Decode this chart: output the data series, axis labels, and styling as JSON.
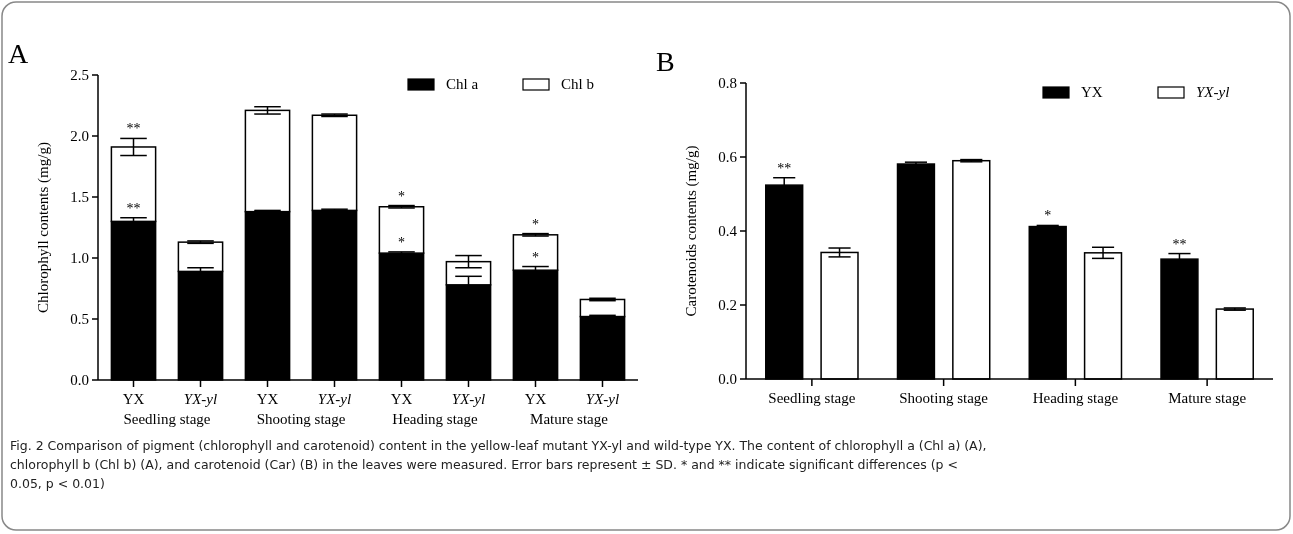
{
  "chart_data": [
    {
      "type": "bar",
      "title": "A",
      "ylabel": "Chlorophyll contents (mg/g)",
      "stacked": true,
      "legend": "top right",
      "categories": [
        "YX",
        "YX-yl",
        "YX",
        "YX-yl",
        "YX",
        "YX-yl",
        "YX",
        "YX-yl"
      ],
      "series": [
        {
          "name": "Chl a",
          "color": "#000000",
          "values": [
            1.3,
            0.89,
            1.38,
            1.39,
            1.04,
            0.78,
            0.9,
            0.52
          ],
          "errors": [
            0.03,
            0.03,
            0.01,
            0.01,
            0.01,
            0.07,
            0.03,
            0.01
          ],
          "value_labels": [
            "**",
            null,
            null,
            null,
            "*",
            null,
            "*",
            null
          ]
        },
        {
          "name": "Chl b",
          "color": "#ffffff",
          "values": [
            0.61,
            0.24,
            0.83,
            0.78,
            0.38,
            0.19,
            0.29,
            0.14
          ],
          "errors": [
            0.07,
            0.01,
            0.03,
            0.01,
            0.01,
            0.05,
            0.01,
            0.01
          ],
          "value_labels": [
            "**",
            null,
            null,
            null,
            "*",
            null,
            "*",
            null
          ]
        }
      ],
      "ylim": [
        0,
        2.5
      ],
      "yticks": [
        {
          "value": 0,
          "label": "0.0"
        },
        0.5,
        {
          "value": 1,
          "label": "1.0"
        },
        1.5,
        {
          "value": 2,
          "label": "2.0"
        },
        2.5
      ],
      "annotations": [
        "Seedling stage",
        "Shooting stage",
        "Heading stage",
        "Mature stage"
      ]
    },
    {
      "type": "bar",
      "title": "B",
      "ylabel": "Carotenoids contents (mg/g)",
      "legend": "top right",
      "categories": [
        "Seedling stage",
        "Shooting stage",
        "Heading stage",
        "Mature stage"
      ],
      "series": [
        {
          "name": "YX",
          "color": "#000000",
          "values": [
            0.524,
            0.581,
            0.412,
            0.324
          ],
          "errors": [
            0.02,
            0.005,
            0.003,
            0.015
          ],
          "value_labels": [
            "**",
            null,
            "*",
            "**"
          ]
        },
        {
          "name": "YX-yl",
          "color": "#ffffff",
          "values": [
            0.342,
            0.59,
            0.341,
            0.189
          ],
          "errors": [
            0.012,
            0.003,
            0.015,
            0.003
          ]
        }
      ],
      "ylim": [
        0,
        0.8
      ],
      "yticks": [
        {
          "value": 0,
          "label": "0.0"
        },
        0.2,
        0.4,
        0.6,
        0.8
      ],
      "annotations": [
        "Fig. 2  Comparison of pigment (chlorophyll and carotenoid) content in the yellow-leaf mutant YX-yl and wild-type YX. The content of chlorophyll a (Chl a) (A), chlorophyll b (Chl b) (A), and carotenoid (Car) (B) in the leaves were measured. Error bars represent ± SD. * and ** indicate significant differences (p < 0.05, p < 0.01)"
      ]
    }
  ]
}
